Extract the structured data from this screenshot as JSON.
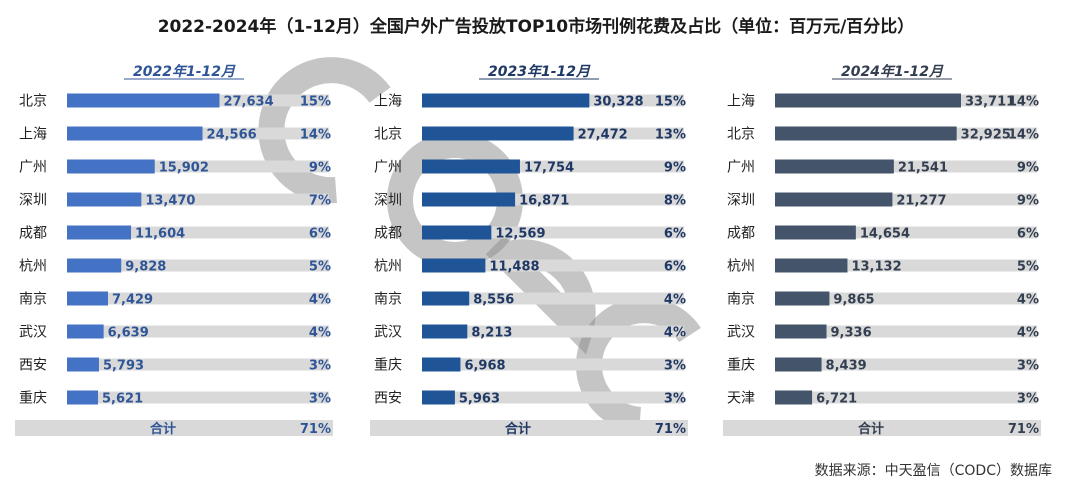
{
  "title": "2022-2024年（1-12月）全国户外广告投放TOP10市场刊例花费及占比（单位：百万元/百分比）",
  "source": "数据来源：中天盈信（CODC）数据库",
  "watermark": "CODC",
  "colors": {
    "track": "#d9d9d9",
    "bar2022": "#4472c4",
    "bar2023": "#1f5496",
    "bar2024": "#44546a",
    "text2022": "#2f5597",
    "text2023": "#1f3864",
    "text2024": "#333f50"
  },
  "chart_data": [
    {
      "type": "bar",
      "title": "2022年1-12月",
      "categories": [
        "北京",
        "上海",
        "广州",
        "深圳",
        "成都",
        "杭州",
        "南京",
        "武汉",
        "西安",
        "重庆"
      ],
      "values": [
        27634,
        24566,
        15902,
        13470,
        11604,
        9828,
        7429,
        6639,
        5793,
        5621
      ],
      "value_labels": [
        "27,634",
        "24,566",
        "15,902",
        "13,470",
        "11,604",
        "9,828",
        "7,429",
        "6,639",
        "5,793",
        "5,621"
      ],
      "shares": [
        "15%",
        "14%",
        "9%",
        "7%",
        "6%",
        "5%",
        "4%",
        "4%",
        "3%",
        "3%"
      ],
      "total_label": "合计",
      "total_share": "71%",
      "unit": "百万元",
      "xlim": [
        0,
        33711
      ]
    },
    {
      "type": "bar",
      "title": "2023年1-12月",
      "categories": [
        "上海",
        "北京",
        "广州",
        "深圳",
        "成都",
        "杭州",
        "南京",
        "武汉",
        "重庆",
        "西安"
      ],
      "values": [
        30328,
        27472,
        17754,
        16871,
        12569,
        11488,
        8556,
        8213,
        6968,
        5963
      ],
      "value_labels": [
        "30,328",
        "27,472",
        "17,754",
        "16,871",
        "12,569",
        "11,488",
        "8,556",
        "8,213",
        "6,968",
        "5,963"
      ],
      "shares": [
        "15%",
        "13%",
        "9%",
        "8%",
        "6%",
        "6%",
        "4%",
        "4%",
        "3%",
        "3%"
      ],
      "total_label": "合计",
      "total_share": "71%",
      "unit": "百万元",
      "xlim": [
        0,
        33711
      ]
    },
    {
      "type": "bar",
      "title": "2024年1-12月",
      "categories": [
        "上海",
        "北京",
        "广州",
        "深圳",
        "成都",
        "杭州",
        "南京",
        "武汉",
        "重庆",
        "天津"
      ],
      "values": [
        33711,
        32925,
        21541,
        21277,
        14654,
        13132,
        9865,
        9336,
        8439,
        6721
      ],
      "value_labels": [
        "33,711",
        "32,925",
        "21,541",
        "21,277",
        "14,654",
        "13,132",
        "9,865",
        "9,336",
        "8,439",
        "6,721"
      ],
      "shares": [
        "14%",
        "14%",
        "9%",
        "9%",
        "6%",
        "5%",
        "4%",
        "4%",
        "3%",
        "3%"
      ],
      "total_label": "合计",
      "total_share": "71%",
      "unit": "百万元",
      "xlim": [
        0,
        33711
      ]
    }
  ]
}
